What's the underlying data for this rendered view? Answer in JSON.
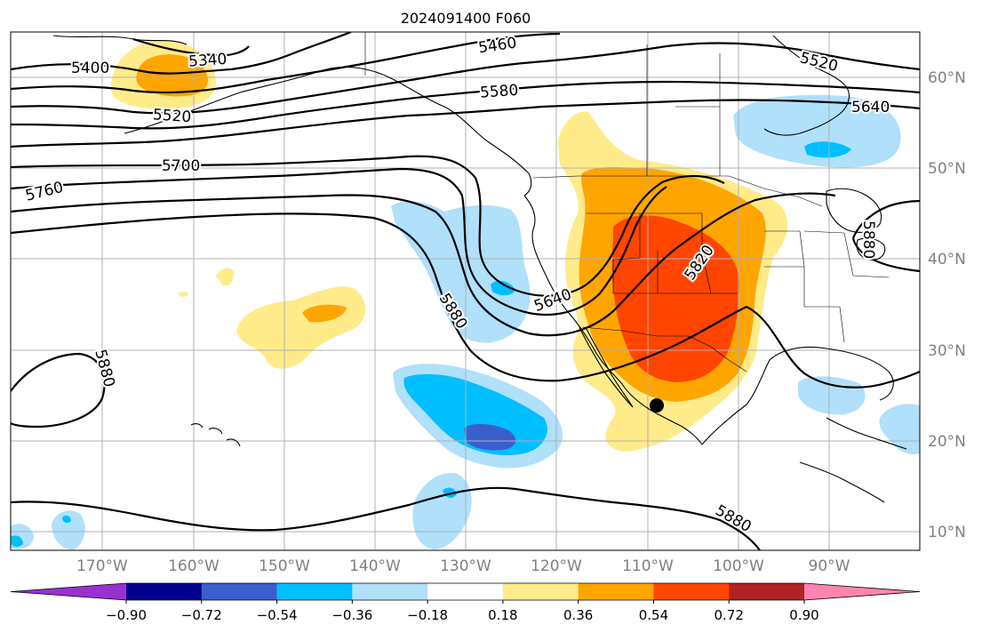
{
  "title": "2024091400 F060",
  "latitude_labels": [
    "60°N",
    "50°N",
    "40°N",
    "30°N",
    "20°N",
    "10°N"
  ],
  "longitude_labels": [
    "170°W",
    "160°W",
    "150°W",
    "140°W",
    "130°W",
    "120°W",
    "110°W",
    "100°W",
    "90°W"
  ],
  "colorbar": {
    "tick_labels": [
      "−0.90",
      "−0.72",
      "−0.54",
      "−0.36",
      "−0.18",
      "0.18",
      "0.36",
      "0.54",
      "0.72",
      "0.90"
    ],
    "colors": [
      "#9b30d0",
      "#00008b",
      "#3a5fcd",
      "#00bfff",
      "#b0e0fa",
      "#ffffff",
      "#ffeb8a",
      "#ffa500",
      "#ff4500",
      "#b22222",
      "#ff85b0"
    ],
    "extend": "both"
  },
  "contour_labels": [
    "5340",
    "5400",
    "5460",
    "5520",
    "5520",
    "5580",
    "5640",
    "5640",
    "5700",
    "5760",
    "5820",
    "5880",
    "5880",
    "5880",
    "5880",
    "5880"
  ],
  "colors": {
    "positive_light": "#ffeb8a",
    "positive_mid": "#ffa500",
    "positive_strong": "#ff4500",
    "negative_light": "#b0e0fa",
    "negative_mid": "#00bfff",
    "negative_strong": "#3a5fcd",
    "contour": "#000000",
    "grid": "#b0b0b0"
  }
}
